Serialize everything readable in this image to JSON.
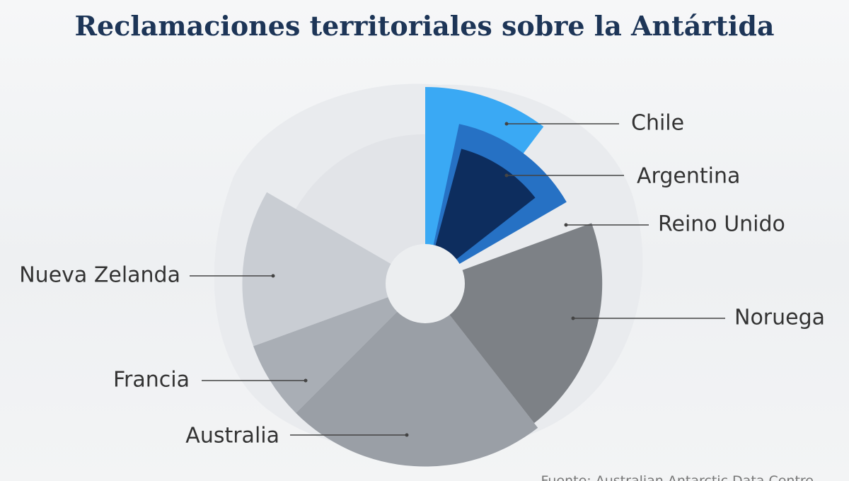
{
  "title": "Reclamaciones territoriales sobre la Antártida",
  "source": "Fuente: Australian Antarctic Data Centre",
  "chart_data": {
    "type": "pie",
    "variant": "polar-area donut with overlapping sectors",
    "legend": "labels with leader lines",
    "slices": [
      {
        "name": "Chile",
        "start_deg": 0,
        "end_deg": 37,
        "radius": 1.0,
        "color": "#3aa9f4"
      },
      {
        "name": "Argentina",
        "start_deg": 12,
        "end_deg": 60,
        "radius": 0.83,
        "color": "#2671c4"
      },
      {
        "name": "Reino Unido",
        "start_deg": 15,
        "end_deg": 52,
        "radius": 0.71,
        "color": "#0d2d5e"
      },
      {
        "name": "Noruega",
        "start_deg": 70,
        "end_deg": 142,
        "radius": 0.9,
        "color": "#7d8186"
      },
      {
        "name": "Australia",
        "start_deg": 142,
        "end_deg": 225,
        "radius": 0.93,
        "color": "#9a9fa6"
      },
      {
        "name": "Francia",
        "start_deg": 225,
        "end_deg": 250,
        "radius": 0.93,
        "color": "#a9aeb5"
      },
      {
        "name": "Nueva Zelanda",
        "start_deg": 250,
        "end_deg": 300,
        "radius": 0.93,
        "color": "#c9cdd3"
      },
      {
        "name": "",
        "start_deg": 300,
        "end_deg": 360,
        "radius": 0.76,
        "color": "#e2e4e8"
      }
    ]
  }
}
